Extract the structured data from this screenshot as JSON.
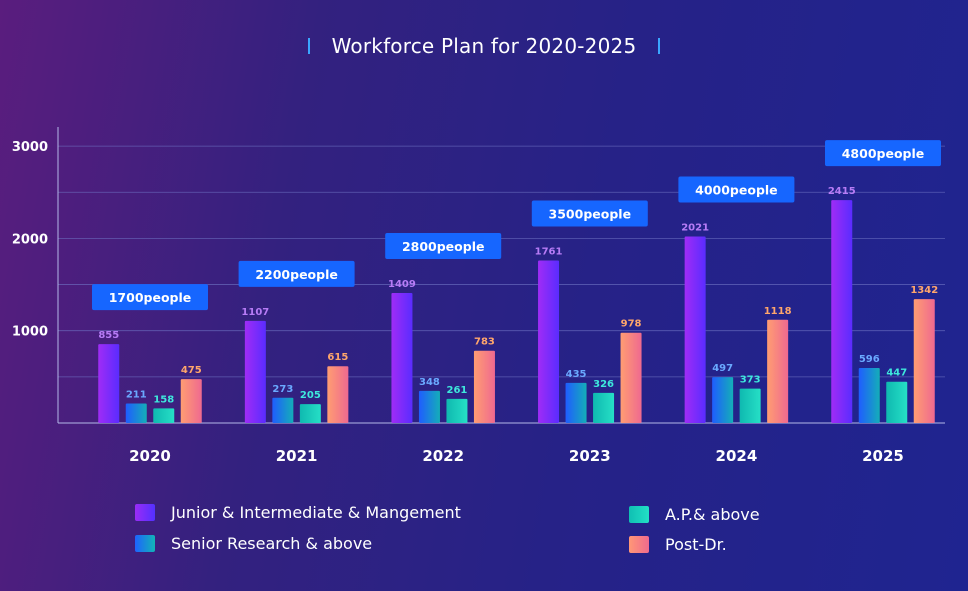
{
  "chart_data": {
    "type": "bar",
    "title": "Workforce Plan for 2020-2025",
    "categories": [
      "2020",
      "2021",
      "2022",
      "2023",
      "2024",
      "2025"
    ],
    "ylim": [
      0,
      3200
    ],
    "yticks": [
      "1000",
      "2000",
      "3000"
    ],
    "grid": true,
    "totals": [
      "1700people",
      "2200people",
      "2800people",
      "3500people",
      "4000people",
      "4800people"
    ],
    "series": [
      {
        "name": "Junior & Intermediate & Mangement",
        "values": [
          855,
          1107,
          1409,
          1761,
          2021,
          2415
        ],
        "label_color": "#b77cf6"
      },
      {
        "name": "Senior Research & above",
        "values": [
          211,
          273,
          348,
          435,
          497,
          596
        ],
        "label_color": "#6aa9ff"
      },
      {
        "name": "A.P.& above",
        "values": [
          158,
          205,
          261,
          326,
          373,
          447
        ],
        "label_color": "#3ee8dc"
      },
      {
        "name": "Post-Dr.",
        "values": [
          475,
          615,
          783,
          978,
          1118,
          1342
        ],
        "label_color": "#ffa66b"
      }
    ],
    "legend_position": "bottom"
  }
}
